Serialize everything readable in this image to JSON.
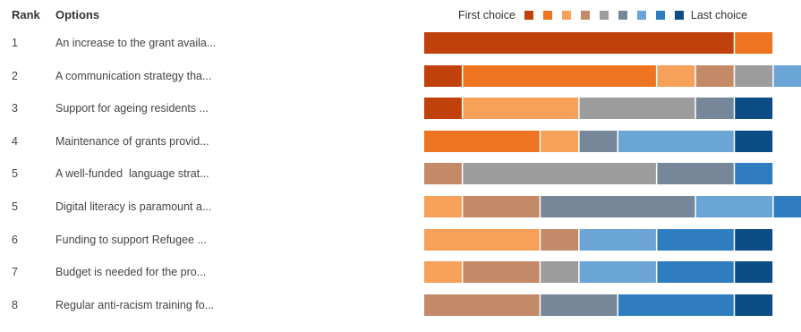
{
  "header": {
    "rank_label": "Rank",
    "options_label": "Options"
  },
  "legend": {
    "first_label": "First choice",
    "last_label": "Last choice",
    "colors": [
      "#c0410c",
      "#ed7420",
      "#f7a05a",
      "#c48a68",
      "#9c9c9c",
      "#758799",
      "#6aa5d6",
      "#2f7dc0",
      "#0d4d86"
    ]
  },
  "chart_data": {
    "type": "bar",
    "orientation": "horizontal",
    "stacked": true,
    "legend_position": "top-right",
    "categories": [
      {
        "rank": "1",
        "option": "An increase to the grant availa..."
      },
      {
        "rank": "2",
        "option": "A communication strategy tha..."
      },
      {
        "rank": "3",
        "option": "Support for ageing residents ..."
      },
      {
        "rank": "4",
        "option": "Maintenance of grants provid..."
      },
      {
        "rank": "5",
        "option": "A well-funded  language strat..."
      },
      {
        "rank": "5",
        "option": "Digital literacy is paramount a..."
      },
      {
        "rank": "6",
        "option": "Funding to support Refugee ..."
      },
      {
        "rank": "7",
        "option": "Budget is needed for the pro..."
      },
      {
        "rank": "8",
        "option": "Regular anti-racism training fo..."
      }
    ],
    "series": [
      {
        "values": [
          8,
          1,
          1,
          0,
          0,
          0,
          0,
          0,
          0
        ]
      },
      {
        "values": [
          1,
          5,
          0,
          3,
          0,
          0,
          0,
          0,
          0
        ]
      },
      {
        "values": [
          0,
          1,
          3,
          1,
          0,
          1,
          3,
          1,
          0
        ]
      },
      {
        "values": [
          0,
          1,
          0,
          0,
          1,
          2,
          1,
          2,
          3
        ]
      },
      {
        "values": [
          0,
          1,
          3,
          0,
          5,
          0,
          0,
          1,
          0
        ]
      },
      {
        "values": [
          0,
          0,
          1,
          1,
          2,
          4,
          0,
          0,
          2
        ]
      },
      {
        "values": [
          0,
          1,
          0,
          3,
          0,
          2,
          2,
          2,
          0
        ]
      },
      {
        "values": [
          0,
          0,
          0,
          0,
          1,
          1,
          2,
          2,
          3
        ]
      },
      {
        "values": [
          0,
          0,
          1,
          1,
          0,
          0,
          1,
          1,
          1
        ]
      }
    ],
    "visible_total": 9.7
  }
}
